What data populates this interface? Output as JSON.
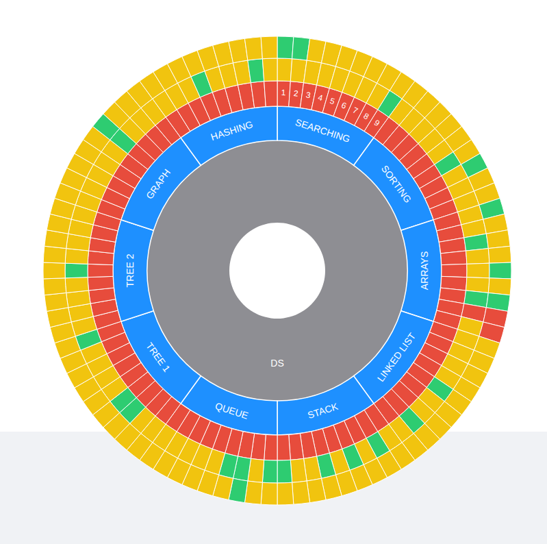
{
  "chart_data": {
    "type": "sunburst",
    "title": "DS",
    "color": "#8e8e93",
    "segments": {
      "labels": [
        "SEARCHING",
        "SORTING",
        "ARRAYS",
        "LINKED LIST",
        "STACK",
        "QUEUE",
        "TREE 1",
        "TREE 2",
        "GRAPH",
        "HASHING"
      ],
      "color": "#1e90ff"
    },
    "cells": {
      "labels": [
        1,
        2,
        3,
        4,
        5,
        6,
        7,
        8,
        9,
        null,
        null,
        null,
        null,
        null,
        null,
        null,
        null,
        null,
        null,
        null,
        null,
        null,
        null,
        null,
        null,
        null,
        null,
        null,
        null,
        null,
        null,
        null,
        null,
        null,
        null,
        null,
        null,
        null,
        null,
        null,
        null,
        null,
        null,
        null,
        null,
        null,
        null,
        null,
        null,
        null,
        null,
        null,
        null,
        null,
        null,
        null,
        null,
        null,
        null,
        null,
        null,
        null,
        null,
        null,
        null,
        null,
        null,
        null,
        null,
        null,
        null,
        null,
        null,
        null,
        null,
        null,
        null,
        null,
        null,
        null,
        null,
        null,
        null,
        null,
        null,
        null,
        null,
        null,
        null,
        null
      ],
      "color": "#e74c3c"
    },
    "rings": [
      {
        "colors": [
          "#f1c40f",
          "#f1c40f",
          "#f1c40f",
          "#f1c40f",
          "#f1c40f",
          "#f1c40f",
          "#f1c40f",
          "#f1c40f",
          "#2ecc71",
          "#f1c40f",
          "#f1c40f",
          "#f1c40f",
          "#f1c40f",
          "#f1c40f",
          "#2ecc71",
          "#f1c40f",
          "#f1c40f",
          "#f1c40f",
          "#f1c40f",
          "#f1c40f",
          "#2ecc71",
          "#f1c40f",
          "#f1c40f",
          "#f1c40f",
          "#2ecc71",
          "#e74c3c",
          "#f1c40f",
          "#f1c40f",
          "#f1c40f",
          "#f1c40f",
          "#f1c40f",
          "#2ecc71",
          "#f1c40f",
          "#f1c40f",
          "#2ecc71",
          "#f1c40f",
          "#f1c40f",
          "#2ecc71",
          "#f1c40f",
          "#2ecc71",
          "#f1c40f",
          "#2ecc71",
          "#f1c40f",
          "#f1c40f",
          "#2ecc71",
          "#2ecc71",
          "#f1c40f",
          "#2ecc71",
          "#2ecc71",
          "#f1c40f",
          "#f1c40f",
          "#f1c40f",
          "#f1c40f",
          "#f1c40f",
          "#f1c40f",
          "#f1c40f",
          "#2ecc71",
          "#2ecc71",
          "#f1c40f",
          "#f1c40f",
          "#f1c40f",
          "#f1c40f",
          "#2ecc71",
          "#f1c40f",
          "#f1c40f",
          "#f1c40f",
          "#f1c40f",
          "#2ecc71",
          "#f1c40f",
          "#f1c40f",
          "#f1c40f",
          "#f1c40f",
          "#f1c40f",
          "#f1c40f",
          "#f1c40f",
          "#f1c40f",
          "#f1c40f",
          "#2ecc71",
          "#f1c40f",
          "#f1c40f",
          "#f1c40f",
          "#f1c40f",
          "#f1c40f",
          "#f1c40f",
          "#2ecc71",
          "#f1c40f",
          "#f1c40f",
          "#f1c40f",
          "#2ecc71",
          "#f1c40f"
        ]
      },
      {
        "colors": [
          "#2ecc71",
          "#2ecc71",
          "#f1c40f",
          "#f1c40f",
          "#f1c40f",
          "#f1c40f",
          "#f1c40f",
          "#f1c40f",
          "#f1c40f",
          "#f1c40f",
          "#f1c40f",
          "#f1c40f",
          "#f1c40f",
          "#f1c40f",
          "#f1c40f",
          "#2ecc71",
          "#f1c40f",
          "#f1c40f",
          "#2ecc71",
          "#f1c40f",
          "#f1c40f",
          "#f1c40f",
          "#2ecc71",
          "#f1c40f",
          "#2ecc71",
          "#e74c3c",
          "#e74c3c",
          "#f1c40f",
          "#f1c40f",
          "#f1c40f",
          "#f1c40f",
          "#f1c40f",
          "#f1c40f",
          "#f1c40f",
          "#f1c40f",
          "#f1c40f",
          "#f1c40f",
          "#f1c40f",
          "#f1c40f",
          "#f1c40f",
          "#f1c40f",
          "#f1c40f",
          "#f1c40f",
          "#f1c40f",
          "#f1c40f",
          "#f1c40f",
          "#f1c40f",
          "#2ecc71",
          "#f1c40f",
          "#f1c40f",
          "#f1c40f",
          "#f1c40f",
          "#f1c40f",
          "#f1c40f",
          "#f1c40f",
          "#f1c40f",
          "#f1c40f",
          "#f1c40f",
          "#f1c40f",
          "#f1c40f",
          "#f1c40f",
          "#f1c40f",
          "#f1c40f",
          "#f1c40f",
          "#f1c40f",
          "#f1c40f",
          "#f1c40f",
          "#f1c40f",
          "#f1c40f",
          "#f1c40f",
          "#f1c40f",
          "#f1c40f",
          "#f1c40f",
          "#f1c40f",
          "#f1c40f",
          "#f1c40f",
          "#f1c40f",
          "#2ecc71",
          "#f1c40f",
          "#f1c40f",
          "#f1c40f",
          "#f1c40f",
          "#f1c40f",
          "#f1c40f",
          "#f1c40f",
          "#f1c40f",
          "#f1c40f",
          "#f1c40f",
          "#f1c40f",
          "#f1c40f"
        ]
      }
    ]
  }
}
